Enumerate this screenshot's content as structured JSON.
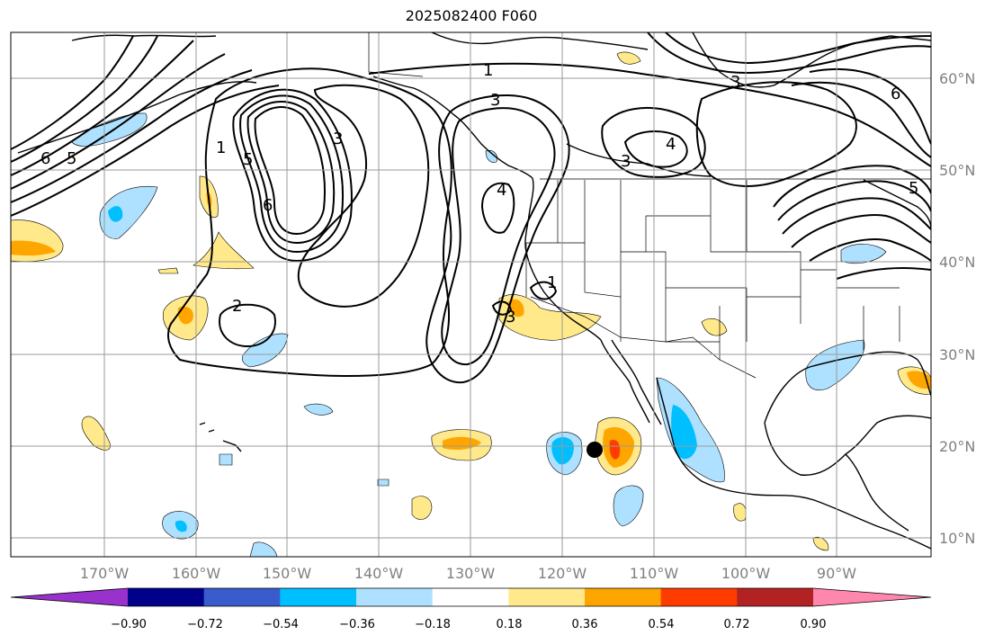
{
  "title": "2025082400 F060",
  "map": {
    "lon_labels": [
      "170°W",
      "160°W",
      "150°W",
      "140°W",
      "130°W",
      "120°W",
      "110°W",
      "100°W",
      "90°W"
    ],
    "lat_labels": [
      "60°N",
      "50°N",
      "40°N",
      "30°N",
      "20°N",
      "10°N"
    ],
    "contour_labels": [
      "1",
      "1",
      "2",
      "3",
      "3",
      "3",
      "3",
      "3",
      "4",
      "4",
      "5",
      "5",
      "5",
      "6",
      "6",
      "6",
      "1"
    ],
    "marker": "storm-center-dot"
  },
  "colorbar": {
    "tick_labels": [
      "−0.90",
      "−0.72",
      "−0.54",
      "−0.36",
      "−0.18",
      "0.18",
      "0.36",
      "0.54",
      "0.72",
      "0.90"
    ],
    "colors": [
      "#9932cc",
      "#00008b",
      "#3a5bcc",
      "#00bfff",
      "#aee0ff",
      "#ffffff",
      "#ffe98a",
      "#ffa500",
      "#ff3c00",
      "#b22222",
      "#ff86ad"
    ]
  },
  "colors": {
    "contour": "#000000",
    "grid": "#9a9a9a",
    "positive_light": "#ffe98a",
    "positive_mid": "#ffa500",
    "positive_strong": "#ff3c00",
    "negative_light": "#aee0ff",
    "negative_mid": "#00bfff"
  }
}
